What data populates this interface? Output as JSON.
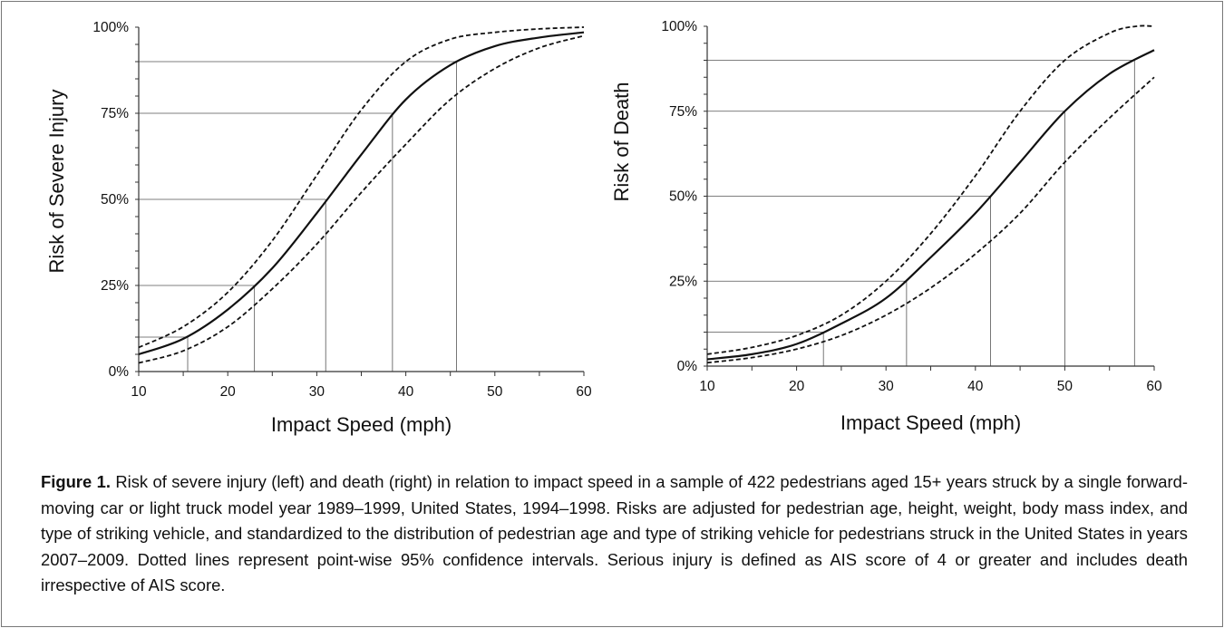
{
  "chart_data": [
    {
      "type": "line",
      "ylabel": "Risk of Severe Injury",
      "xlabel": "Impact Speed (mph)",
      "xlim": [
        10,
        60
      ],
      "ylim": [
        0,
        100
      ],
      "xticks": [
        "10",
        "20",
        "30",
        "40",
        "50",
        "60"
      ],
      "yticks": [
        "0%",
        "25%",
        "50%",
        "75%",
        "100%"
      ],
      "grid": false,
      "series": [
        {
          "style": "solid",
          "x": [
            10,
            15,
            20,
            25,
            30,
            35,
            40,
            45,
            50,
            55,
            60
          ],
          "y": [
            5,
            9.5,
            18,
            30,
            46,
            63,
            79,
            89,
            94.5,
            97,
            98.5
          ]
        },
        {
          "style": "dashed",
          "x": [
            10,
            15,
            20,
            25,
            30,
            35,
            40,
            45,
            50,
            55,
            60
          ],
          "y": [
            7,
            13,
            23,
            38,
            57,
            76,
            90,
            96.5,
            98.5,
            99.5,
            100
          ]
        },
        {
          "style": "dashed",
          "x": [
            10,
            15,
            20,
            25,
            30,
            35,
            40,
            45,
            50,
            55,
            60
          ],
          "y": [
            2.5,
            6,
            13,
            24,
            37,
            52,
            66,
            79,
            88,
            94,
            97.5
          ]
        }
      ],
      "reference_points": [
        [
          15.5,
          10
        ],
        [
          23,
          25
        ],
        [
          31,
          50
        ],
        [
          38.5,
          75
        ],
        [
          45.7,
          90
        ]
      ]
    },
    {
      "type": "line",
      "ylabel": "Risk of Death",
      "xlabel": "Impact Speed (mph)",
      "xlim": [
        10,
        60
      ],
      "ylim": [
        0,
        100
      ],
      "xticks": [
        "10",
        "20",
        "30",
        "40",
        "50",
        "60"
      ],
      "yticks": [
        "0%",
        "25%",
        "50%",
        "75%",
        "100%"
      ],
      "grid": false,
      "series": [
        {
          "style": "solid",
          "x": [
            10,
            15,
            20,
            25,
            30,
            35,
            40,
            45,
            50,
            55,
            60
          ],
          "y": [
            2,
            3.5,
            6.5,
            12.5,
            20,
            32,
            45,
            60,
            75,
            86,
            93
          ]
        },
        {
          "style": "dashed",
          "x": [
            10,
            15,
            20,
            25,
            30,
            35,
            40,
            45,
            50,
            55,
            58,
            60
          ],
          "y": [
            3.5,
            5.5,
            9,
            15,
            25,
            39,
            56,
            75,
            90,
            98,
            100,
            100
          ]
        },
        {
          "style": "dashed",
          "x": [
            10,
            15,
            20,
            25,
            30,
            35,
            40,
            45,
            50,
            55,
            60
          ],
          "y": [
            1,
            2.5,
            5,
            9,
            15,
            23,
            33,
            45,
            60,
            73,
            85
          ]
        }
      ],
      "reference_points": [
        [
          23,
          10
        ],
        [
          32.3,
          25
        ],
        [
          41.7,
          50
        ],
        [
          50,
          75
        ],
        [
          57.8,
          90
        ]
      ]
    }
  ],
  "caption": {
    "label": "Figure 1.",
    "text": "Risk of severe injury (left) and death (right) in relation to impact speed in a sample of 422 pedestrians aged 15+ years struck by a single forward-moving car or light truck model year 1989–1999, United States, 1994–1998. Risks are adjusted for pedestrian age, height, weight, body mass index, and type of striking vehicle, and standardized to the distribution of pedestrian age and type of striking vehicle for pedestrians struck in the United States in years 2007–2009. Dotted lines represent point-wise 95% confidence intervals. Serious injury is defined as AIS score of 4 or greater and includes death irrespective of AIS score."
  }
}
